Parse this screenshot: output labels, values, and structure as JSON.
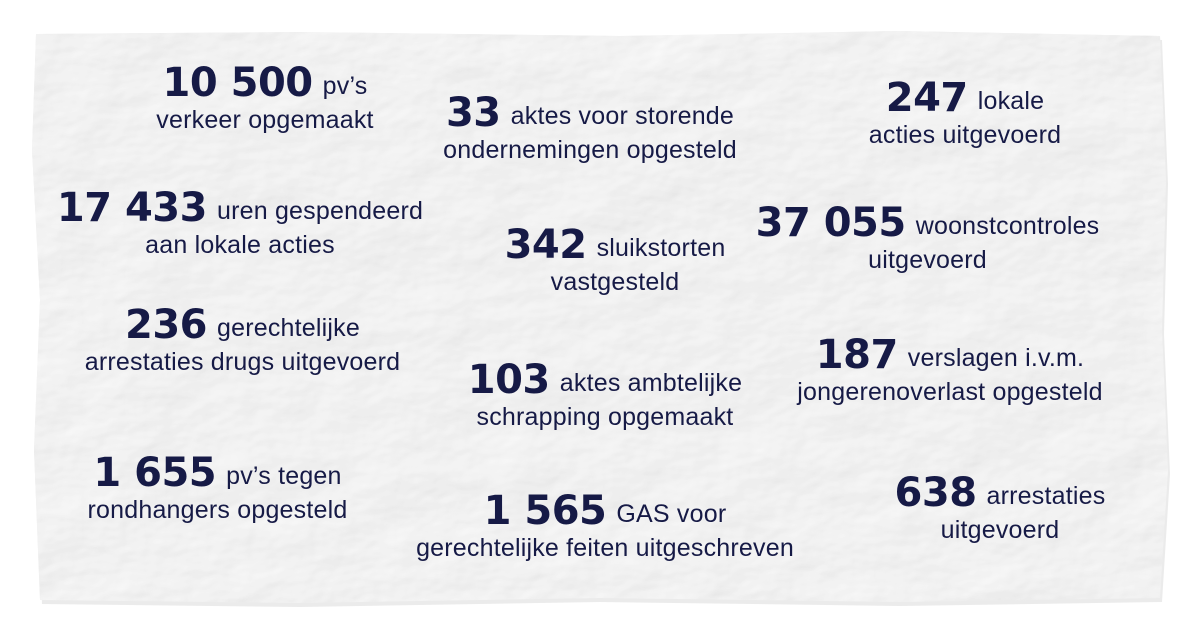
{
  "stats": [
    {
      "number": "10 500",
      "text1": "pv’s",
      "text2": "verkeer opgemaakt"
    },
    {
      "number": "33",
      "text1": "aktes voor storende",
      "text2": "ondernemingen opgesteld"
    },
    {
      "number": "247",
      "text1": "lokale",
      "text2": "acties uitgevoerd"
    },
    {
      "number": "17 433",
      "text1": "uren gespendeerd",
      "text2": "aan lokale acties"
    },
    {
      "number": "342",
      "text1": "sluikstorten",
      "text2": "vastgesteld"
    },
    {
      "number": "37 055",
      "text1": "woonstcontroles",
      "text2": "uitgevoerd"
    },
    {
      "number": "236",
      "text1": "gerechtelijke",
      "text2": "arrestaties drugs uitgevoerd"
    },
    {
      "number": "103",
      "text1": "aktes ambtelijke",
      "text2": "schrapping opgemaakt"
    },
    {
      "number": "187",
      "text1": "verslagen i.v.m.",
      "text2": "jongerenoverlast opgesteld"
    },
    {
      "number": "1 655",
      "text1": "pv’s tegen",
      "text2": "rondhangers opgesteld"
    },
    {
      "number": "1 565",
      "text1": "GAS voor",
      "text2": "gerechtelijke feiten uitgeschreven"
    },
    {
      "number": "638",
      "text1": "arrestaties",
      "text2": "uitgevoerd"
    }
  ],
  "colors": {
    "text": "#161a46",
    "paper": "#eeeeee",
    "background": "#ffffff"
  }
}
